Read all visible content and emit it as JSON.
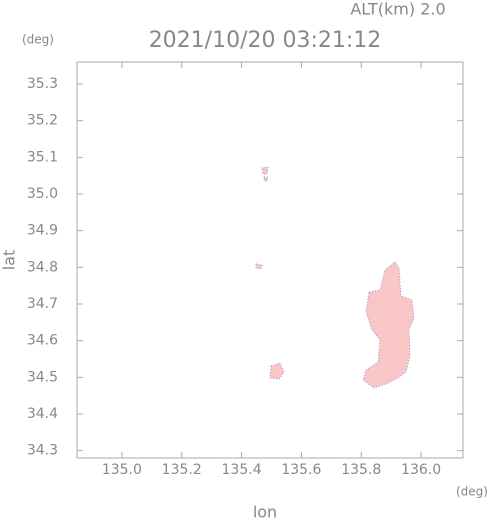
{
  "chart_data": {
    "type": "map",
    "title": "2021/10/20 03:21:12",
    "altitude_label": "ALT(km) 2.0",
    "y_unit": "(deg)",
    "x_unit": "(deg)",
    "ylabel": "lat",
    "xlabel": "lon",
    "xlim": [
      134.85,
      136.14
    ],
    "ylim": [
      34.28,
      35.36
    ],
    "xticks": [
      {
        "value": 135,
        "label": "135.0"
      },
      135.2,
      135.4,
      135.6,
      135.8,
      {
        "value": 136,
        "label": "136.0"
      }
    ],
    "yticks": [
      34.3,
      34.4,
      34.5,
      34.6,
      34.7,
      34.8,
      34.9,
      {
        "value": 35,
        "label": "35.0"
      },
      35.1,
      35.2,
      35.3
    ]
  }
}
